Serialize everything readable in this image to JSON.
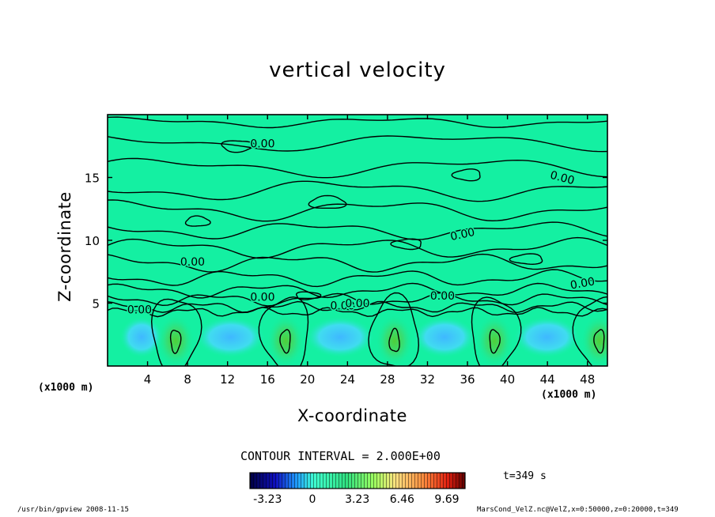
{
  "chart_data": {
    "type": "heatmap",
    "title": "vertical velocity",
    "xlabel": "X-coordinate",
    "ylabel": "Z-coordinate",
    "x_unit": "(x1000 m)",
    "xlim": [
      0,
      50
    ],
    "ylim": [
      0,
      20
    ],
    "x_ticks": [
      4,
      8,
      12,
      16,
      20,
      24,
      28,
      32,
      36,
      40,
      44,
      48
    ],
    "y_ticks": [
      5,
      10,
      15
    ],
    "contour_interval": "CONTOUR INTERVAL = 2.000E+00",
    "contour_labels": [
      "0.00",
      "0.00",
      "0.00",
      "0.00",
      "0.00",
      "0.00",
      "0.00",
      "0.00",
      "0.00",
      "0.00"
    ],
    "updraft_centers_x": [
      6.8,
      17.8,
      28.7,
      38.7,
      49.2
    ],
    "updraft_center_z": 2.0,
    "colorbar": {
      "min": -4.5,
      "max": 11,
      "tick_labels": [
        "-3.23",
        "0",
        "3.23",
        "6.46",
        "9.69"
      ],
      "tick_values": [
        -3.23,
        0,
        3.23,
        6.46,
        9.69
      ]
    },
    "time_label": "t=349 s",
    "grid": false
  },
  "footer": {
    "left": "/usr/bin/gpview   2008-11-15",
    "right": "MarsCond_VelZ.nc@VelZ,x=0:50000,z=0:20000,t=349"
  }
}
